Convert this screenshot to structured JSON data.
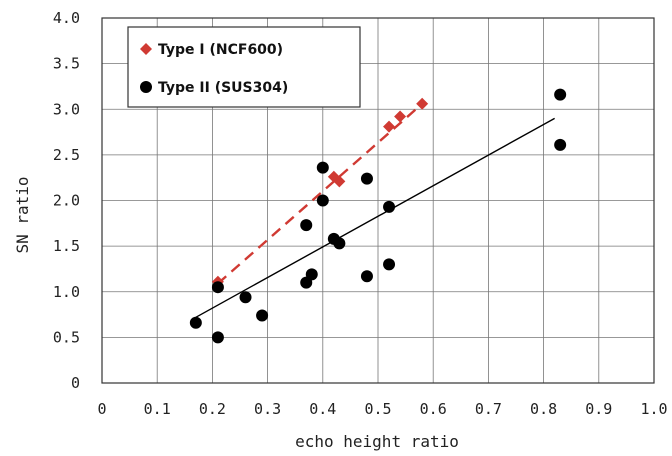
{
  "chart_data": {
    "type": "scatter",
    "title": "",
    "xlabel": "echo height ratio",
    "ylabel": "SN ratio",
    "xlim": [
      0,
      1.0
    ],
    "ylim": [
      0,
      4.0
    ],
    "x_ticks": [
      "0",
      "0.1",
      "0.2",
      "0.3",
      "0.4",
      "0.5",
      "0.6",
      "0.7",
      "0.8",
      "0.9",
      "1.0"
    ],
    "y_ticks": [
      "0",
      "0.5",
      "1.0",
      "1.5",
      "2.0",
      "2.5",
      "3.0",
      "3.5",
      "4.0"
    ],
    "grid": true,
    "legend_position": "top-left",
    "series": [
      {
        "name": "Type I  (NCF600)",
        "marker": "diamond",
        "color": "#d03a33",
        "points": [
          {
            "x": 0.21,
            "y": 1.11
          },
          {
            "x": 0.42,
            "y": 2.26
          },
          {
            "x": 0.43,
            "y": 2.21
          },
          {
            "x": 0.52,
            "y": 2.81
          },
          {
            "x": 0.54,
            "y": 2.92
          },
          {
            "x": 0.58,
            "y": 3.06
          }
        ],
        "trendline": {
          "style": "dashed",
          "x": [
            0.21,
            0.58
          ],
          "y": [
            1.09,
            3.06
          ]
        }
      },
      {
        "name": "Type II  (SUS304)",
        "marker": "circle",
        "color": "#000000",
        "points": [
          {
            "x": 0.17,
            "y": 0.66
          },
          {
            "x": 0.21,
            "y": 1.05
          },
          {
            "x": 0.21,
            "y": 0.5
          },
          {
            "x": 0.26,
            "y": 0.94
          },
          {
            "x": 0.29,
            "y": 0.74
          },
          {
            "x": 0.37,
            "y": 1.73
          },
          {
            "x": 0.37,
            "y": 1.1
          },
          {
            "x": 0.38,
            "y": 1.19
          },
          {
            "x": 0.4,
            "y": 2.36
          },
          {
            "x": 0.4,
            "y": 2.0
          },
          {
            "x": 0.42,
            "y": 1.58
          },
          {
            "x": 0.43,
            "y": 1.53
          },
          {
            "x": 0.48,
            "y": 2.24
          },
          {
            "x": 0.48,
            "y": 1.17
          },
          {
            "x": 0.52,
            "y": 1.93
          },
          {
            "x": 0.52,
            "y": 1.3
          },
          {
            "x": 0.83,
            "y": 3.16
          },
          {
            "x": 0.83,
            "y": 2.61
          }
        ],
        "trendline": {
          "style": "solid",
          "x": [
            0.17,
            0.82
          ],
          "y": [
            0.72,
            2.9
          ]
        }
      }
    ]
  }
}
